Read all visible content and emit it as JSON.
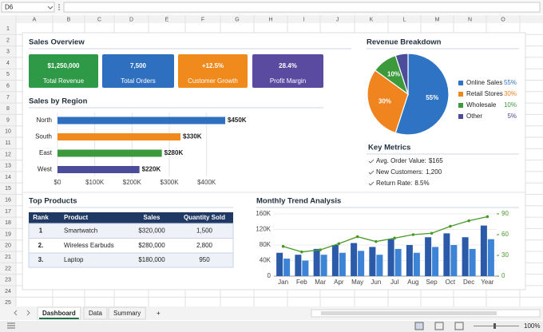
{
  "name_box": "D6",
  "columns": [
    "A",
    "B",
    "C",
    "D",
    "E",
    "F",
    "G",
    "H",
    "I",
    "J",
    "K",
    "L",
    "M",
    "N",
    "O"
  ],
  "rows": [
    1,
    2,
    3,
    4,
    5,
    6,
    7,
    8,
    9,
    10,
    11,
    12,
    13,
    14,
    15,
    16,
    17,
    18,
    19,
    20,
    21,
    22,
    23,
    24,
    25
  ],
  "sheet": {
    "overview_title": "Sales Overview",
    "kpis": [
      {
        "value": "$1,250,000",
        "label": "Total Revenue",
        "color": "#2e9a48"
      },
      {
        "value": "7,500",
        "label": "Total Orders",
        "color": "#2f6fc0"
      },
      {
        "value": "+12.5%",
        "label": "Customer Growth",
        "color": "#f08a1c"
      },
      {
        "value": "28.4%",
        "label": "Profit Margin",
        "color": "#5a4aa0"
      }
    ],
    "region_chart": {
      "type": "bar",
      "orientation": "horizontal",
      "title": "Sales by Region",
      "categories": [
        "North",
        "South",
        "East",
        "West"
      ],
      "values": [
        450000,
        330000,
        280000,
        220000
      ],
      "value_labels": [
        "$450K",
        "$330K",
        "$280K",
        "$220K"
      ],
      "colors": [
        "#2f6fc0",
        "#f08a1c",
        "#3c9a3c",
        "#4b4c9a"
      ],
      "xlim": [
        0,
        450000
      ],
      "xticks": [
        {
          "value": 0,
          "label": "$0"
        },
        {
          "value": 100000,
          "label": "$100K"
        },
        {
          "value": 200000,
          "label": "$200K"
        },
        {
          "value": 300000,
          "label": "$300K"
        },
        {
          "value": 400000,
          "label": "$400K"
        }
      ],
      "grid": true
    },
    "pie_chart": {
      "type": "pie",
      "title": "Revenue Breakdown",
      "categories": [
        "Online Sales",
        "Retail Stores",
        "Wholesale",
        "Other"
      ],
      "values": [
        55,
        30,
        10,
        5
      ],
      "value_labels": [
        "55%",
        "30%",
        "10%",
        "5%"
      ],
      "colors": [
        "#2f74c4",
        "#f0841e",
        "#3c9a3c",
        "#4b4c9a"
      ]
    },
    "metrics": {
      "title": "Key Metrics",
      "items": [
        {
          "label": "Avg. Order Value:",
          "value": "$165"
        },
        {
          "label": "New Customers:",
          "value": "1,200"
        },
        {
          "label": "Return Rate:",
          "value": "8.5%"
        }
      ]
    },
    "products": {
      "title": "Top Products",
      "header": [
        "Rank",
        "Product",
        "Sales",
        "Quantity Sold"
      ],
      "rows": [
        [
          "1",
          "Smartwatch",
          "$320,000",
          "1,500"
        ],
        [
          "2.",
          "Wireless Earbuds",
          "$280,000",
          "2,800"
        ],
        [
          "3.",
          "Laptop",
          "$180,000",
          "950"
        ]
      ]
    },
    "trend_chart": {
      "type": "bar_line",
      "title": "Monthly Trend Analysis",
      "categories": [
        "Jan",
        "Feb",
        "Mar",
        "Apr",
        "May",
        "Jun",
        "Jul",
        "Aug",
        "Sep",
        "Oct",
        "Dec",
        "Year"
      ],
      "series": [
        {
          "type": "bar",
          "color": "#2a5aa8",
          "values": [
            60000,
            55000,
            70000,
            80000,
            85000,
            75000,
            95000,
            80000,
            100000,
            110000,
            100000,
            130000
          ]
        },
        {
          "type": "bar",
          "color": "#3d84d6",
          "values": [
            45000,
            40000,
            55000,
            60000,
            65000,
            55000,
            70000,
            60000,
            75000,
            80000,
            70000,
            95000
          ]
        },
        {
          "type": "line",
          "axis": "y2",
          "color": "#4a9a2a",
          "values": [
            43,
            35,
            38,
            47,
            57,
            50,
            55,
            60,
            62,
            72,
            80,
            86
          ]
        }
      ],
      "ylim": [
        0,
        160000
      ],
      "yticks": [
        0,
        {
          "value": 40000,
          "label": "40K"
        },
        {
          "value": 80000,
          "label": "80K"
        },
        {
          "value": 120000,
          "label": "120K"
        },
        {
          "value": 160000,
          "label": "160K"
        }
      ],
      "y2lim": [
        0,
        90
      ],
      "y2ticks": [
        0,
        30,
        60,
        90
      ],
      "grid": true
    }
  },
  "tabs": [
    "Dashboard",
    "Data",
    "Summary"
  ],
  "active_tab": 0,
  "zoom": "100%"
}
